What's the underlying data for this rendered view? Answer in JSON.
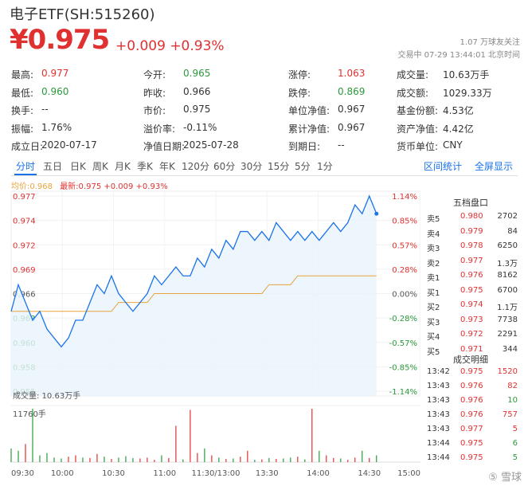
{
  "header": {
    "title": "电子ETF(SH:515260)",
    "price": "¥0.975",
    "change": "+0.009 +0.93%",
    "followers": "1.07 万球友关注",
    "trade_status": "交易中 07-29 13:44:01 北京时间"
  },
  "stats": [
    {
      "label": "最高:",
      "value": "0.977",
      "color": "red"
    },
    {
      "label": "今开:",
      "value": "0.965",
      "color": "green"
    },
    {
      "label": "涨停:",
      "value": "1.063",
      "color": "red"
    },
    {
      "label": "成交量:",
      "value": "10.63万手",
      "color": "none"
    },
    {
      "label": "最低:",
      "value": "0.960",
      "color": "green"
    },
    {
      "label": "昨收:",
      "value": "0.966",
      "color": "none"
    },
    {
      "label": "跌停:",
      "value": "0.869",
      "color": "green"
    },
    {
      "label": "成交额:",
      "value": "1029.33万",
      "color": "none"
    },
    {
      "label": "换手:",
      "value": "--",
      "color": "none"
    },
    {
      "label": "市价:",
      "value": "0.975",
      "color": "none"
    },
    {
      "label": "单位净值:",
      "value": "0.967",
      "color": "none"
    },
    {
      "label": "基金份额:",
      "value": "4.53亿",
      "color": "none"
    },
    {
      "label": "振幅:",
      "value": "1.76%",
      "color": "none"
    },
    {
      "label": "溢价率:",
      "value": "-0.11%",
      "color": "none"
    },
    {
      "label": "累计净值:",
      "value": "0.967",
      "color": "none"
    },
    {
      "label": "资产净值:",
      "value": "4.42亿",
      "color": "none"
    },
    {
      "label": "成立日:",
      "value": "2020-07-17",
      "color": "none"
    },
    {
      "label": "净值日期:",
      "value": "2025-07-28",
      "color": "none"
    },
    {
      "label": "到期日:",
      "value": "--",
      "color": "none"
    },
    {
      "label": "货币单位:",
      "value": "CNY",
      "color": "none"
    }
  ],
  "tabs": [
    "分时",
    "五日",
    "日K",
    "周K",
    "月K",
    "季K",
    "年K",
    "120分",
    "60分",
    "30分",
    "15分",
    "5分",
    "1分"
  ],
  "active_tab": "分时",
  "links": {
    "interval_stats": "区间统计",
    "fullscreen": "全屏显示"
  },
  "legend": {
    "avg": "均价:0.968",
    "latest": "最新:0.975 +0.009 +0.93%"
  },
  "order_book": {
    "title": "五档盘口",
    "rows": [
      {
        "label": "卖5",
        "price": "0.980",
        "vol": "2702",
        "color": "red"
      },
      {
        "label": "卖4",
        "price": "0.979",
        "vol": "84",
        "color": "red"
      },
      {
        "label": "卖3",
        "price": "0.978",
        "vol": "6250",
        "color": "red"
      },
      {
        "label": "卖2",
        "price": "0.977",
        "vol": "1.3万",
        "color": "red"
      },
      {
        "label": "卖1",
        "price": "0.976",
        "vol": "8162",
        "color": "red"
      },
      {
        "label": "买1",
        "price": "0.975",
        "vol": "6700",
        "color": "red"
      },
      {
        "label": "买2",
        "price": "0.974",
        "vol": "1.1万",
        "color": "red"
      },
      {
        "label": "买3",
        "price": "0.973",
        "vol": "7738",
        "color": "red"
      },
      {
        "label": "买4",
        "price": "0.972",
        "vol": "2291",
        "color": "red"
      },
      {
        "label": "买5",
        "price": "0.971",
        "vol": "344",
        "color": "red"
      }
    ]
  },
  "trades": {
    "title": "成交明细",
    "rows": [
      {
        "time": "13:42",
        "price": "0.975",
        "vol": "1520",
        "color": "red"
      },
      {
        "time": "13:43",
        "price": "0.976",
        "vol": "82",
        "color": "red"
      },
      {
        "time": "13:43",
        "price": "0.976",
        "vol": "10",
        "color": "green"
      },
      {
        "time": "13:43",
        "price": "0.976",
        "vol": "757",
        "color": "red"
      },
      {
        "time": "13:43",
        "price": "0.977",
        "vol": "5",
        "color": "red"
      },
      {
        "time": "13:44",
        "price": "0.975",
        "vol": "6",
        "color": "green"
      },
      {
        "time": "13:44",
        "price": "0.975",
        "vol": "5",
        "color": "green"
      }
    ]
  },
  "chart_data": {
    "type": "line",
    "price_ticks": [
      "0.977",
      "0.974",
      "0.972",
      "0.969",
      "0.966",
      "0.963",
      "0.960",
      "0.958",
      "0.955"
    ],
    "pct_ticks": [
      "1.14%",
      "0.85%",
      "0.57%",
      "0.28%",
      "0.00%",
      "-0.28%",
      "-0.57%",
      "-0.85%",
      "-1.14%"
    ],
    "ylim": [
      0.955,
      0.977
    ],
    "prev_close": 0.966,
    "x_ticks": [
      "09:30",
      "10:00",
      "10:30",
      "11:00",
      "11:30/13:00",
      "13:30",
      "14:00",
      "14:30",
      "15:00"
    ],
    "price_series": [
      0.964,
      0.967,
      0.965,
      0.963,
      0.964,
      0.962,
      0.961,
      0.96,
      0.961,
      0.963,
      0.963,
      0.965,
      0.967,
      0.966,
      0.968,
      0.966,
      0.965,
      0.964,
      0.965,
      0.966,
      0.968,
      0.967,
      0.968,
      0.969,
      0.968,
      0.968,
      0.97,
      0.969,
      0.971,
      0.97,
      0.972,
      0.971,
      0.973,
      0.973,
      0.972,
      0.973,
      0.972,
      0.974,
      0.973,
      0.972,
      0.973,
      0.972,
      0.973,
      0.972,
      0.973,
      0.974,
      0.973,
      0.974,
      0.976,
      0.975,
      0.977,
      0.975
    ],
    "avg_series": [
      0.964,
      0.964,
      0.964,
      0.964,
      0.964,
      0.964,
      0.964,
      0.964,
      0.964,
      0.964,
      0.964,
      0.964,
      0.964,
      0.964,
      0.964,
      0.965,
      0.965,
      0.965,
      0.965,
      0.965,
      0.966,
      0.966,
      0.966,
      0.966,
      0.966,
      0.966,
      0.966,
      0.966,
      0.966,
      0.966,
      0.966,
      0.966,
      0.966,
      0.966,
      0.966,
      0.966,
      0.967,
      0.967,
      0.967,
      0.967,
      0.968,
      0.968,
      0.968,
      0.968,
      0.968,
      0.968,
      0.968,
      0.968,
      0.968,
      0.968,
      0.968,
      0.968
    ],
    "volume_label": "成交量: 10.63万手",
    "volume_max_label": "11760手",
    "volume_max": 11760,
    "volumes": [
      3000,
      2500,
      4000,
      11760,
      1500,
      2000,
      1000,
      800,
      1200,
      1500,
      1000,
      900,
      1800,
      1200,
      700,
      1000,
      1300,
      900,
      800,
      1000,
      500,
      1500,
      900,
      8000,
      600,
      11500,
      2000,
      3000,
      1500,
      1000,
      700,
      800,
      1200,
      2500,
      500,
      600,
      900,
      700,
      800,
      1000,
      1200,
      600,
      11760,
      2500,
      1500,
      900,
      800,
      500,
      1000,
      2500,
      900,
      1500
    ],
    "volume_colors_up": [
      0,
      0,
      1,
      0,
      0,
      0,
      0,
      0,
      1,
      1,
      0,
      1,
      1,
      0,
      1,
      0,
      0,
      0,
      1,
      1,
      1,
      0,
      1,
      1,
      0,
      1,
      1,
      0,
      1,
      0,
      1,
      0,
      1,
      1,
      0,
      1,
      0,
      1,
      0,
      0,
      1,
      0,
      1,
      0,
      1,
      1,
      0,
      1,
      1,
      0,
      1,
      0
    ]
  }
}
